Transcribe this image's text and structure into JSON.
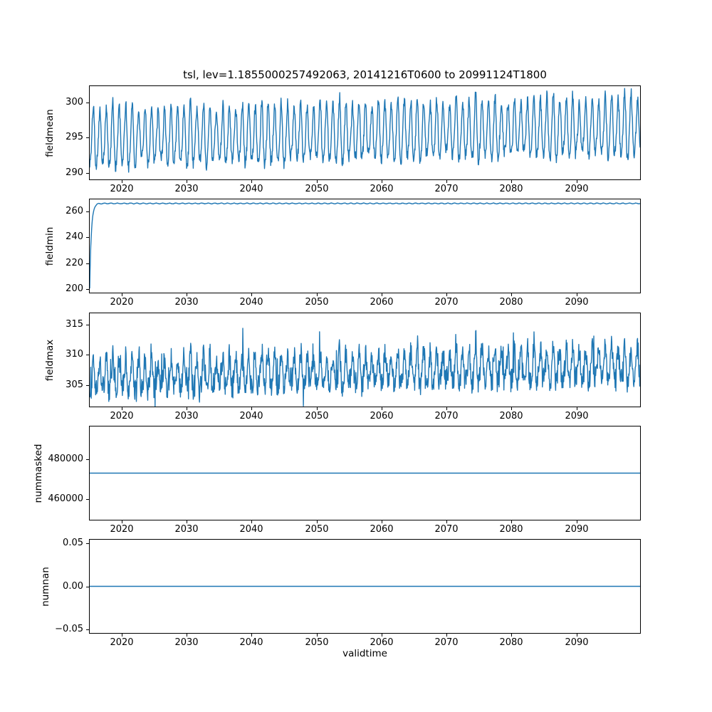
{
  "figure": {
    "title": "tsl, lev=1.1855000257492063, 20141216T0600 to 20991124T1800",
    "xlabel": "validtime",
    "line_color": "#1f77b4",
    "background": "#ffffff",
    "x_range": [
      2014.96,
      2099.9
    ],
    "x_ticks": [
      {
        "value": 2020,
        "label": "2020"
      },
      {
        "value": 2030,
        "label": "2030"
      },
      {
        "value": 2040,
        "label": "2040"
      },
      {
        "value": 2050,
        "label": "2050"
      },
      {
        "value": 2060,
        "label": "2060"
      },
      {
        "value": 2070,
        "label": "2070"
      },
      {
        "value": 2080,
        "label": "2080"
      },
      {
        "value": 2090,
        "label": "2090"
      }
    ]
  },
  "chart_data": [
    {
      "type": "line",
      "ylabel": "fieldmean",
      "ylim": [
        289.0,
        302.4
      ],
      "yticks": [
        {
          "value": 290,
          "label": "290"
        },
        {
          "value": 295,
          "label": "295"
        },
        {
          "value": 300,
          "label": "300"
        }
      ],
      "legend": "none",
      "grid": false,
      "series": {
        "kind": "seasonal",
        "seed": 101,
        "base": 294.8,
        "trend": 1.6,
        "amplitude": 4.0,
        "noise": 0.85,
        "spikes": false,
        "summary": "annual cycle oscillating ~290-300 K, upper envelope rising to ~302 by 2099"
      }
    },
    {
      "type": "line",
      "ylabel": "fieldmin",
      "ylim": [
        196.7,
        269.7
      ],
      "yticks": [
        {
          "value": 200,
          "label": "200"
        },
        {
          "value": 220,
          "label": "220"
        },
        {
          "value": 240,
          "label": "240"
        },
        {
          "value": 260,
          "label": "260"
        }
      ],
      "legend": "none",
      "grid": false,
      "series": {
        "kind": "riseflat",
        "seed": 102,
        "start": 200,
        "level": 266.5,
        "tau_years": 0.25,
        "wiggle": 0.6,
        "noise": 0.25,
        "summary": "jumps from ~200 at the start (2015) up to ~266-267 and stays flat with tiny annual ripple"
      }
    },
    {
      "type": "line",
      "ylabel": "fieldmax",
      "ylim": [
        301.3,
        317.0
      ],
      "yticks": [
        {
          "value": 305,
          "label": "305"
        },
        {
          "value": 310,
          "label": "310"
        },
        {
          "value": 315,
          "label": "315"
        }
      ],
      "legend": "none",
      "grid": false,
      "series": {
        "kind": "seasonal",
        "seed": 103,
        "base": 306.3,
        "trend": 1.9,
        "amplitude": 2.6,
        "noise": 1.9,
        "spikes": true,
        "summary": "noisy oscillation ~302-313, peaks growing to ~316 after 2060"
      }
    },
    {
      "type": "line",
      "ylabel": "nummasked",
      "ylim": [
        449350,
        496650
      ],
      "yticks": [
        {
          "value": 460000,
          "label": "460000"
        },
        {
          "value": 480000,
          "label": "480000"
        }
      ],
      "legend": "none",
      "grid": false,
      "series": {
        "kind": "flat",
        "seed": 104,
        "value": 473000,
        "summary": "constant ~473000 masked points for the whole period"
      }
    },
    {
      "type": "line",
      "ylabel": "numnan",
      "ylim": [
        -0.055,
        0.055
      ],
      "yticks": [
        {
          "value": -0.05,
          "label": "−0.05"
        },
        {
          "value": 0,
          "label": "0.00"
        },
        {
          "value": 0.05,
          "label": "0.05"
        }
      ],
      "legend": "none",
      "grid": false,
      "series": {
        "kind": "flat",
        "seed": 105,
        "value": 0,
        "summary": "constant 0 NaN count for the whole period"
      }
    }
  ]
}
